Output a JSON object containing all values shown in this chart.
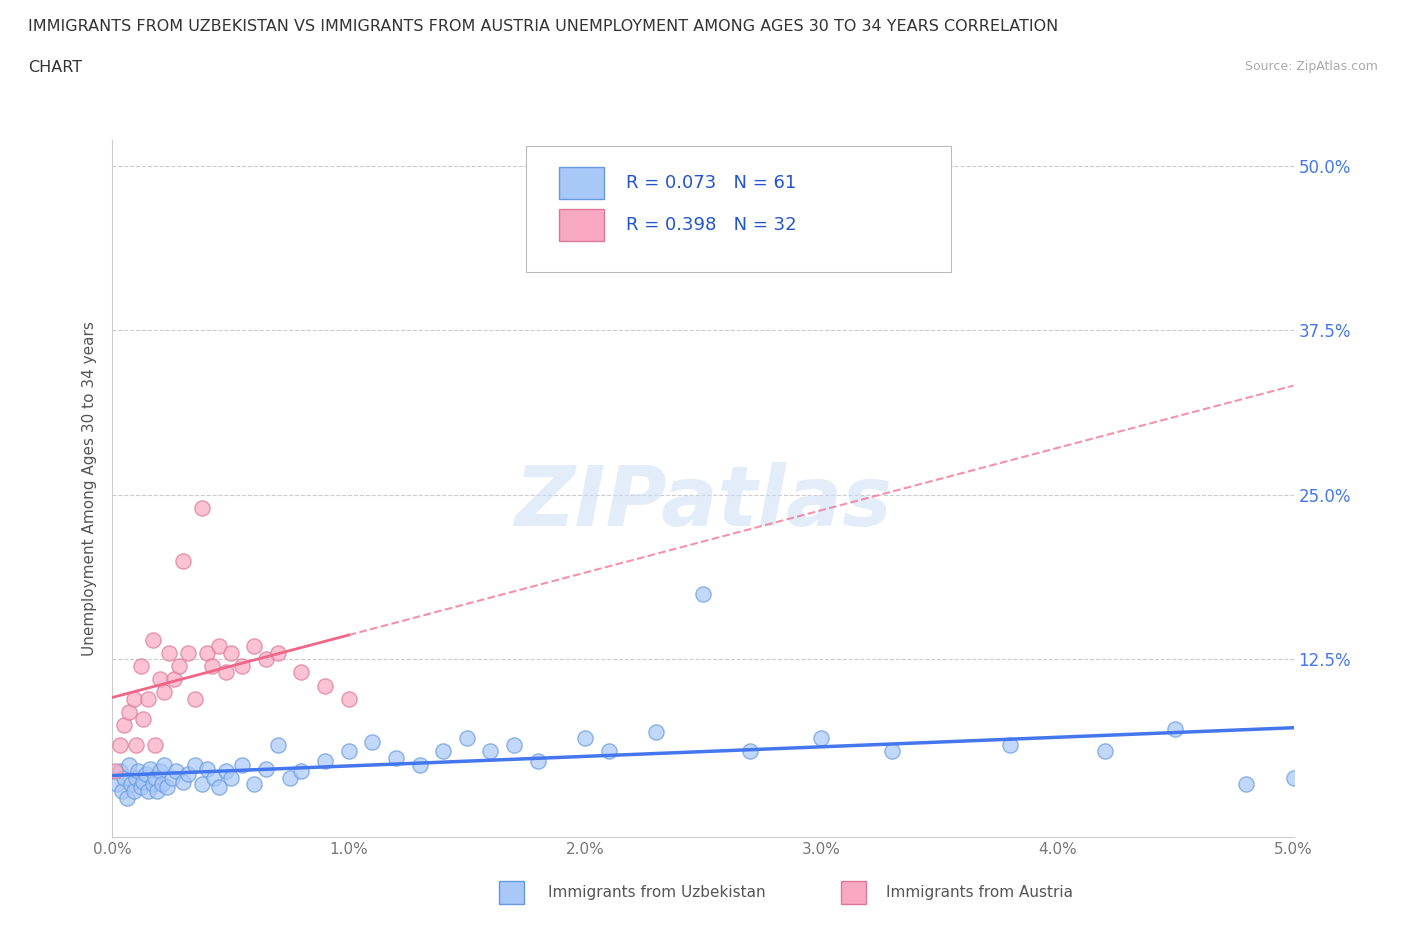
{
  "title_line1": "IMMIGRANTS FROM UZBEKISTAN VS IMMIGRANTS FROM AUSTRIA UNEMPLOYMENT AMONG AGES 30 TO 34 YEARS CORRELATION",
  "title_line2": "CHART",
  "source": "Source: ZipAtlas.com",
  "watermark": "ZIPatlas",
  "ylabel": "Unemployment Among Ages 30 to 34 years",
  "xlim": [
    0.0,
    0.05
  ],
  "ylim": [
    -0.01,
    0.52
  ],
  "xticks": [
    0.0,
    0.01,
    0.02,
    0.03,
    0.04,
    0.05
  ],
  "xtick_labels": [
    "0.0%",
    "1.0%",
    "2.0%",
    "3.0%",
    "4.0%",
    "5.0%"
  ],
  "yticks": [
    0.0,
    0.125,
    0.25,
    0.375,
    0.5
  ],
  "ytick_labels": [
    "",
    "12.5%",
    "25.0%",
    "37.5%",
    "50.0%"
  ],
  "hlines": [
    0.125,
    0.25,
    0.375,
    0.5
  ],
  "legend_label1": "Immigrants from Uzbekistan",
  "legend_label2": "Immigrants from Austria",
  "color_uzbekistan": "#a8c8f8",
  "color_austria": "#f8a8c0",
  "color_edge_uzbekistan": "#6699dd",
  "color_edge_austria": "#dd7799",
  "color_line_uzbekistan": "#4477ee",
  "color_line_austria": "#ee6688",
  "R_uzb": 0.073,
  "N_uzb": 61,
  "R_aut": 0.398,
  "N_aut": 32,
  "uzbekistan_x": [
    0.0002,
    0.0003,
    0.0004,
    0.0005,
    0.0006,
    0.0007,
    0.0008,
    0.0009,
    0.001,
    0.0011,
    0.0012,
    0.0013,
    0.0014,
    0.0015,
    0.0016,
    0.0017,
    0.0018,
    0.0019,
    0.002,
    0.0021,
    0.0022,
    0.0023,
    0.0025,
    0.0027,
    0.003,
    0.0032,
    0.0035,
    0.0038,
    0.004,
    0.0043,
    0.0045,
    0.0048,
    0.005,
    0.0055,
    0.006,
    0.0065,
    0.007,
    0.0075,
    0.008,
    0.009,
    0.01,
    0.011,
    0.012,
    0.013,
    0.014,
    0.015,
    0.016,
    0.017,
    0.018,
    0.02,
    0.021,
    0.023,
    0.025,
    0.027,
    0.03,
    0.033,
    0.038,
    0.042,
    0.045,
    0.048,
    0.05
  ],
  "uzbekistan_y": [
    0.03,
    0.04,
    0.025,
    0.035,
    0.02,
    0.045,
    0.03,
    0.025,
    0.035,
    0.04,
    0.028,
    0.032,
    0.038,
    0.025,
    0.042,
    0.03,
    0.035,
    0.025,
    0.04,
    0.03,
    0.045,
    0.028,
    0.035,
    0.04,
    0.032,
    0.038,
    0.045,
    0.03,
    0.042,
    0.035,
    0.028,
    0.04,
    0.035,
    0.045,
    0.03,
    0.042,
    0.06,
    0.035,
    0.04,
    0.048,
    0.055,
    0.062,
    0.05,
    0.045,
    0.055,
    0.065,
    0.055,
    0.06,
    0.048,
    0.065,
    0.055,
    0.07,
    0.175,
    0.055,
    0.065,
    0.055,
    0.06,
    0.055,
    0.072,
    0.03,
    0.035
  ],
  "austria_x": [
    0.0001,
    0.0003,
    0.0005,
    0.0007,
    0.0009,
    0.001,
    0.0012,
    0.0013,
    0.0015,
    0.0017,
    0.0018,
    0.002,
    0.0022,
    0.0024,
    0.0026,
    0.0028,
    0.003,
    0.0032,
    0.0035,
    0.0038,
    0.004,
    0.0042,
    0.0045,
    0.0048,
    0.005,
    0.0055,
    0.006,
    0.0065,
    0.007,
    0.008,
    0.009,
    0.01
  ],
  "austria_y": [
    0.04,
    0.06,
    0.075,
    0.085,
    0.095,
    0.06,
    0.12,
    0.08,
    0.095,
    0.14,
    0.06,
    0.11,
    0.1,
    0.13,
    0.11,
    0.12,
    0.2,
    0.13,
    0.095,
    0.24,
    0.13,
    0.12,
    0.135,
    0.115,
    0.13,
    0.12,
    0.135,
    0.125,
    0.13,
    0.115,
    0.105,
    0.095
  ],
  "background_color": "#ffffff",
  "grid_color": "#cccccc"
}
